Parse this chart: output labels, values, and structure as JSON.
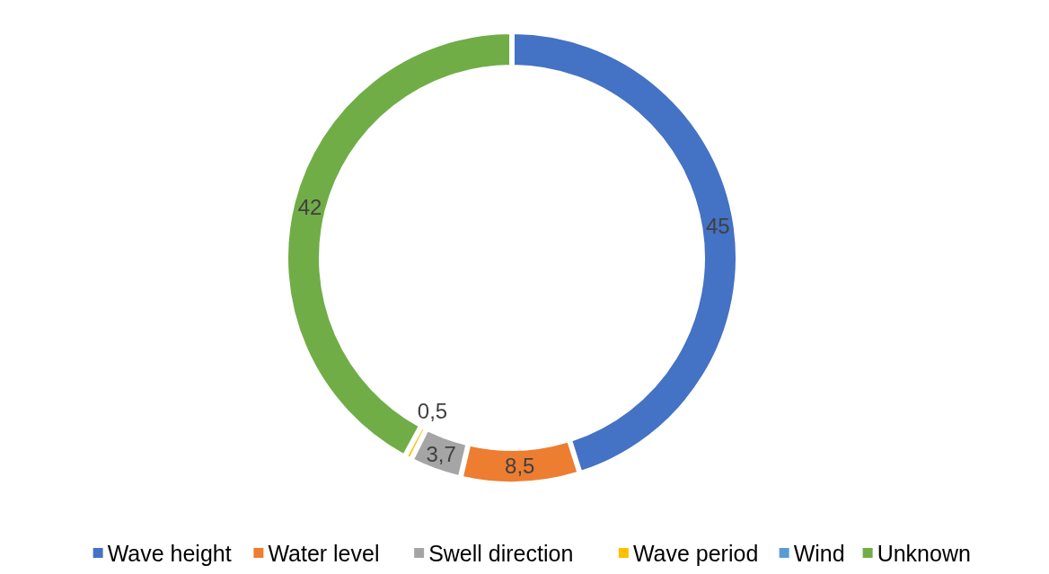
{
  "chart_data": {
    "type": "donut",
    "categories": [
      "Wave height",
      "Water level",
      "Swell direction",
      "Wave period",
      "Wind",
      "Unknown"
    ],
    "values": [
      45,
      8.5,
      3.7,
      0.5,
      0,
      42
    ],
    "colors": [
      "#4472c4",
      "#ed7d31",
      "#a5a5a5",
      "#ffc000",
      "#5b9bd5",
      "#70ad47"
    ],
    "value_labels": [
      "45",
      "8,5",
      "3,7",
      "0,5",
      null,
      "42"
    ],
    "legend": "bottom"
  }
}
